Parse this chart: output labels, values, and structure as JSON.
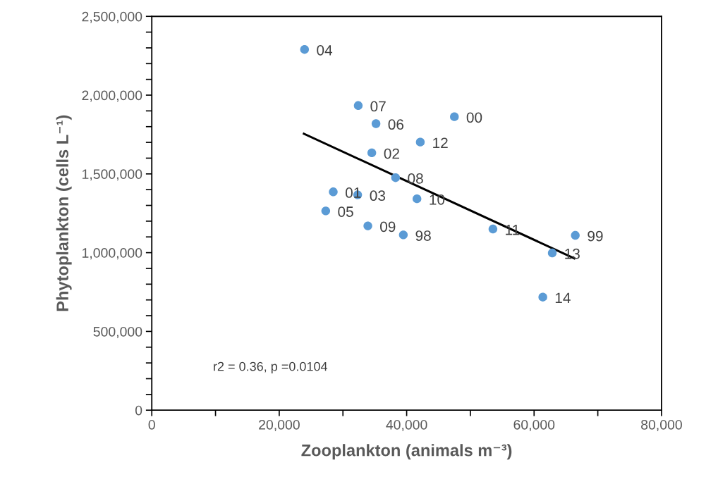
{
  "chart_data": {
    "type": "scatter",
    "xlabel": "Zooplankton (animals m⁻³)",
    "ylabel": "Phytoplankton (cells L⁻¹)",
    "x": [
      23975,
      32400,
      35190,
      47490,
      42140,
      34530,
      38260,
      28480,
      32310,
      41620,
      27300,
      33910,
      39480,
      53540,
      66470,
      62850,
      61370
    ],
    "series": [
      {
        "color": "#5b9bd5",
        "marker": "circle",
        "values": [
          2290000,
          1934000,
          1819000,
          1863000,
          1702000,
          1634000,
          1476000,
          1386000,
          1367000,
          1342000,
          1265000,
          1170000,
          1113000,
          1150000,
          1110000,
          998000,
          718000
        ]
      },
      {
        "type": "line",
        "color": "#000000",
        "marker": "none",
        "line_style": "solid",
        "x": [
          23870,
          66310
        ],
        "values": [
          1755000,
          964000
        ]
      }
    ],
    "annotations": [
      {
        "text": "04",
        "x": 23975,
        "y": 2290000
      },
      {
        "text": "07",
        "x": 32400,
        "y": 1934000
      },
      {
        "text": "06",
        "x": 35190,
        "y": 1819000
      },
      {
        "text": "00",
        "x": 47490,
        "y": 1863000
      },
      {
        "text": "12",
        "x": 42140,
        "y": 1702000
      },
      {
        "text": "02",
        "x": 34530,
        "y": 1634000
      },
      {
        "text": "08",
        "x": 38260,
        "y": 1476000
      },
      {
        "text": "01",
        "x": 28480,
        "y": 1386000
      },
      {
        "text": "03",
        "x": 32310,
        "y": 1367000
      },
      {
        "text": "10",
        "x": 41620,
        "y": 1342000
      },
      {
        "text": "05",
        "x": 27300,
        "y": 1265000
      },
      {
        "text": "09",
        "x": 33910,
        "y": 1170000
      },
      {
        "text": "98",
        "x": 39480,
        "y": 1113000
      },
      {
        "text": "11",
        "x": 53540,
        "y": 1150000
      },
      {
        "text": "99",
        "x": 66470,
        "y": 1110000
      },
      {
        "text": "13",
        "x": 62850,
        "y": 998000
      },
      {
        "text": "14",
        "x": 61370,
        "y": 718000
      },
      "r2 = 0.36, p =0.0104"
    ],
    "xlim": [
      0,
      80000
    ],
    "xticks": [
      {
        "value": 0,
        "label": "0"
      },
      {
        "value": 10000,
        "label": null
      },
      {
        "value": 20000,
        "label": "20,000"
      },
      {
        "value": 30000,
        "label": null
      },
      {
        "value": 40000,
        "label": "40,000"
      },
      {
        "value": 50000,
        "label": null
      },
      {
        "value": 60000,
        "label": "60,000"
      },
      {
        "value": 70000,
        "label": null
      },
      {
        "value": 80000,
        "label": "80,000"
      }
    ],
    "ylim": [
      0,
      2500000
    ],
    "yticks": [
      {
        "value": 0,
        "label": "0"
      },
      {
        "value": 100000,
        "label": null
      },
      {
        "value": 200000,
        "label": null
      },
      {
        "value": 300000,
        "label": null
      },
      {
        "value": 400000,
        "label": null
      },
      {
        "value": 500000,
        "label": "500,000"
      },
      {
        "value": 600000,
        "label": null
      },
      {
        "value": 700000,
        "label": null
      },
      {
        "value": 800000,
        "label": null
      },
      {
        "value": 900000,
        "label": null
      },
      {
        "value": 1000000,
        "label": "1,000,000"
      },
      {
        "value": 1100000,
        "label": null
      },
      {
        "value": 1200000,
        "label": null
      },
      {
        "value": 1300000,
        "label": null
      },
      {
        "value": 1400000,
        "label": null
      },
      {
        "value": 1500000,
        "label": "1,500,000"
      },
      {
        "value": 1600000,
        "label": null
      },
      {
        "value": 1700000,
        "label": null
      },
      {
        "value": 1800000,
        "label": null
      },
      {
        "value": 1900000,
        "label": null
      },
      {
        "value": 2000000,
        "label": "2,000,000"
      },
      {
        "value": 2100000,
        "label": null
      },
      {
        "value": 2200000,
        "label": null
      },
      {
        "value": 2300000,
        "label": null
      },
      {
        "value": 2400000,
        "label": null
      },
      {
        "value": 2500000,
        "label": "2,500,000"
      }
    ],
    "grid": false,
    "legend": false
  }
}
